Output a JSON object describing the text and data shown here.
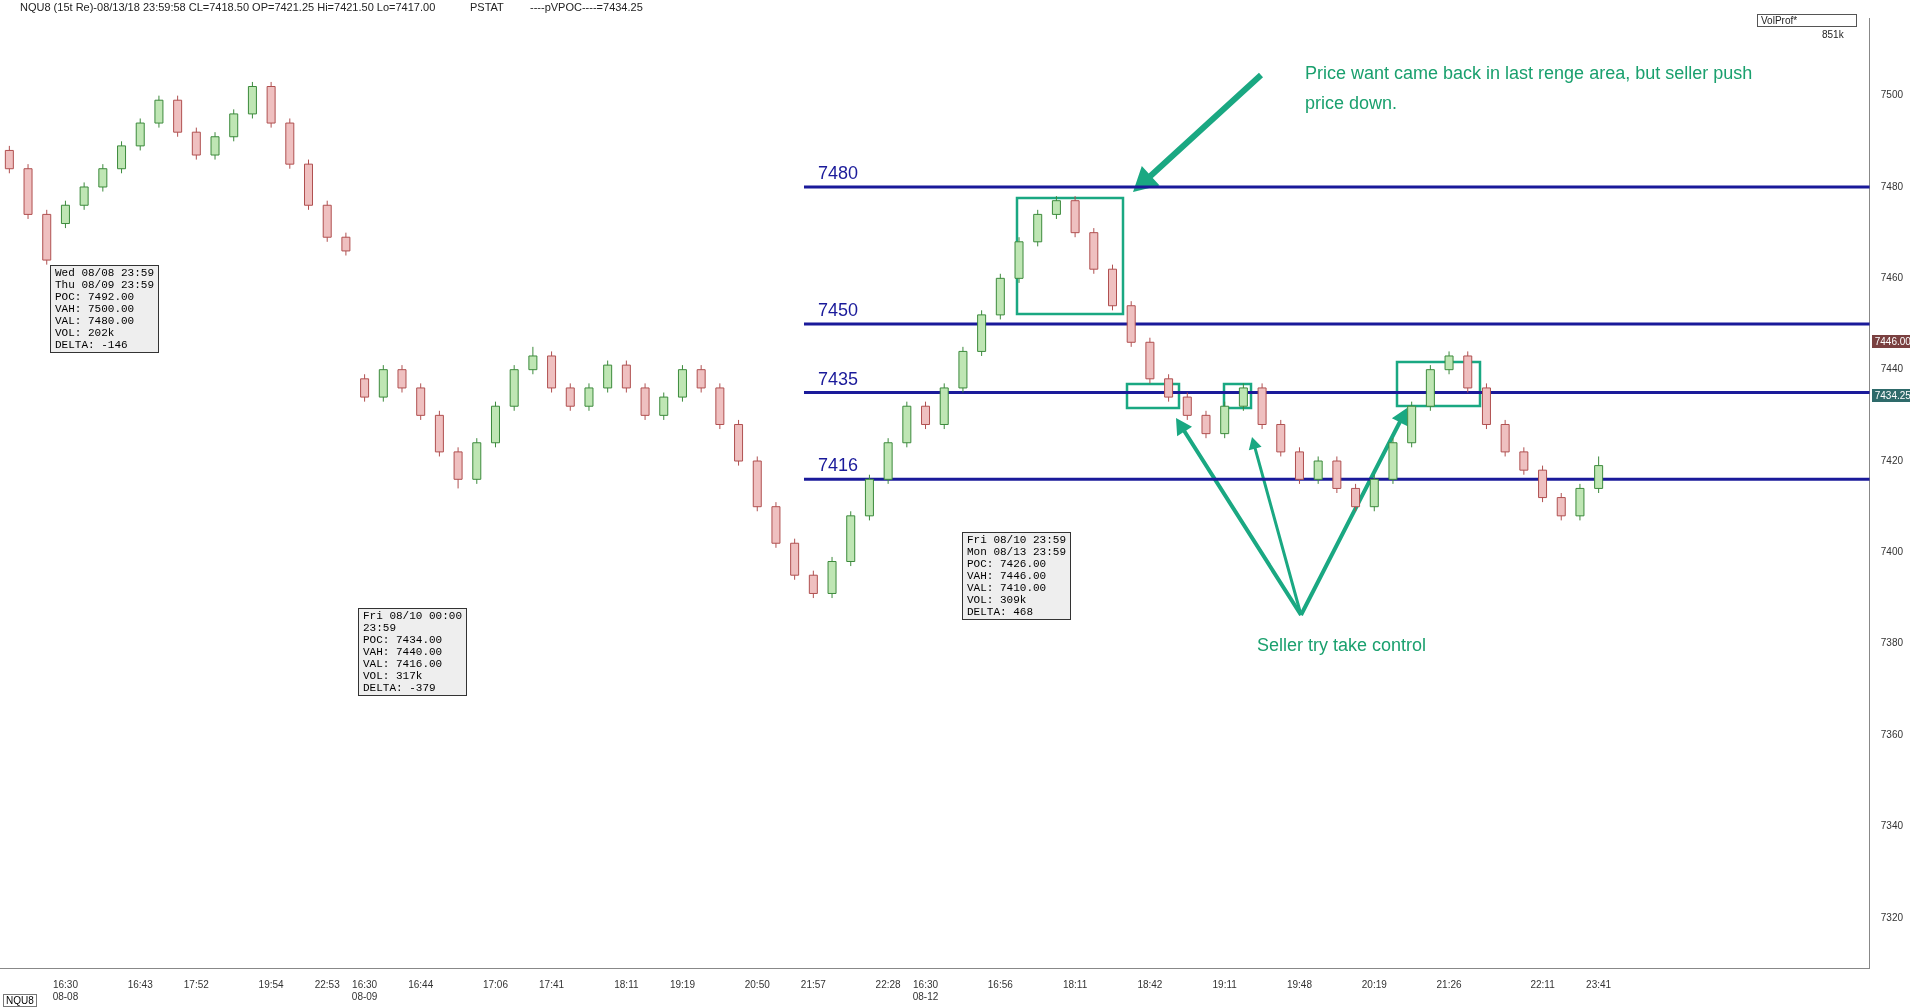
{
  "chart_data": {
    "type": "candlestick",
    "title": "NQU8 (15t Re)-08/13/18 23:59:58 CL=7418.50 OP=7421.25 Hi=7421.50 Lo=7417.00",
    "categories": [
      null,
      null,
      null,
      "16:30\n08-08",
      null,
      null,
      null,
      "16:43",
      null,
      null,
      "17:52",
      null,
      null,
      null,
      "19:54",
      null,
      null,
      "22:53",
      null,
      "16:30\n08-09",
      null,
      null,
      "16:44",
      null,
      null,
      null,
      "17:06",
      null,
      null,
      "17:41",
      null,
      null,
      null,
      "18:11",
      null,
      null,
      "19:19",
      null,
      null,
      null,
      "20:50",
      null,
      null,
      "21:57",
      null,
      null,
      null,
      "22:28",
      null,
      "16:30\n08-12",
      null,
      null,
      null,
      "16:56",
      null,
      null,
      null,
      "18:11",
      null,
      null,
      null,
      "18:42",
      null,
      null,
      null,
      "19:11",
      null,
      null,
      null,
      "19:48",
      null,
      null,
      null,
      "20:19",
      null,
      null,
      null,
      "21:26",
      null,
      null,
      null,
      null,
      "22:11",
      null,
      null,
      "23:41",
      null,
      null,
      null,
      null,
      null,
      null,
      null,
      null,
      null,
      null,
      null,
      null,
      null,
      null
    ],
    "ohlc": [
      [
        7488,
        7489,
        7483,
        7484
      ],
      [
        7484,
        7485,
        7473,
        7474
      ],
      [
        7474,
        7475,
        7463,
        7464
      ],
      [
        7472,
        7477,
        7471,
        7476
      ],
      [
        7476,
        7481,
        7475,
        7480
      ],
      [
        7480,
        7485,
        7479,
        7484
      ],
      [
        7484,
        7490,
        7483,
        7489
      ],
      [
        7489,
        7495,
        7488,
        7494
      ],
      [
        7494,
        7500,
        7493,
        7499
      ],
      [
        7499,
        7500,
        7491,
        7492
      ],
      [
        7492,
        7493,
        7486,
        7487
      ],
      [
        7487,
        7492,
        7486,
        7491
      ],
      [
        7491,
        7497,
        7490,
        7496
      ],
      [
        7496,
        7503,
        7495,
        7502
      ],
      [
        7502,
        7503,
        7493,
        7494
      ],
      [
        7494,
        7495,
        7484,
        7485
      ],
      [
        7485,
        7486,
        7475,
        7476
      ],
      [
        7476,
        7477,
        7468,
        7469
      ],
      [
        7469,
        7470,
        7465,
        7466
      ],
      [
        7438,
        7439,
        7433,
        7434
      ],
      [
        7434,
        7441,
        7433,
        7440
      ],
      [
        7440,
        7441,
        7435,
        7436
      ],
      [
        7436,
        7437,
        7429,
        7430
      ],
      [
        7430,
        7431,
        7421,
        7422
      ],
      [
        7422,
        7423,
        7414,
        7416
      ],
      [
        7416,
        7425,
        7415,
        7424
      ],
      [
        7424,
        7433,
        7423,
        7432
      ],
      [
        7432,
        7441,
        7431,
        7440
      ],
      [
        7440,
        7445,
        7439,
        7443
      ],
      [
        7443,
        7444,
        7435,
        7436
      ],
      [
        7436,
        7437,
        7431,
        7432
      ],
      [
        7432,
        7437,
        7431,
        7436
      ],
      [
        7436,
        7442,
        7435,
        7441
      ],
      [
        7441,
        7442,
        7435,
        7436
      ],
      [
        7436,
        7437,
        7429,
        7430
      ],
      [
        7430,
        7435,
        7429,
        7434
      ],
      [
        7434,
        7441,
        7433,
        7440
      ],
      [
        7440,
        7441,
        7435,
        7436
      ],
      [
        7436,
        7437,
        7427,
        7428
      ],
      [
        7428,
        7429,
        7419,
        7420
      ],
      [
        7420,
        7421,
        7409,
        7410
      ],
      [
        7410,
        7411,
        7401,
        7402
      ],
      [
        7402,
        7403,
        7394,
        7395
      ],
      [
        7395,
        7396,
        7390,
        7391
      ],
      [
        7391,
        7399,
        7390,
        7398
      ],
      [
        7398,
        7409,
        7397,
        7408
      ],
      [
        7408,
        7417,
        7407,
        7416
      ],
      [
        7416,
        7425,
        7415,
        7424
      ],
      [
        7424,
        7433,
        7423,
        7432
      ],
      [
        7432,
        7433,
        7427,
        7428
      ],
      [
        7428,
        7437,
        7427,
        7436
      ],
      [
        7436,
        7445,
        7435,
        7444
      ],
      [
        7444,
        7453,
        7443,
        7452
      ],
      [
        7452,
        7461,
        7451,
        7460
      ],
      [
        7460,
        7469,
        7459,
        7468
      ],
      [
        7468,
        7475,
        7467,
        7474
      ],
      [
        7474,
        7478,
        7473,
        7477
      ],
      [
        7477,
        7478,
        7469,
        7470
      ],
      [
        7470,
        7471,
        7461,
        7462
      ],
      [
        7462,
        7463,
        7453,
        7454
      ],
      [
        7454,
        7455,
        7445,
        7446
      ],
      [
        7446,
        7447,
        7437,
        7438
      ],
      [
        7438,
        7439,
        7433,
        7434
      ],
      [
        7434,
        7435,
        7429,
        7430
      ],
      [
        7430,
        7431,
        7425,
        7426
      ],
      [
        7426,
        7433,
        7425,
        7432
      ],
      [
        7432,
        7437,
        7431,
        7436
      ],
      [
        7436,
        7437,
        7427,
        7428
      ],
      [
        7428,
        7429,
        7421,
        7422
      ],
      [
        7422,
        7423,
        7415,
        7416
      ],
      [
        7416,
        7421,
        7415,
        7420
      ],
      [
        7420,
        7421,
        7413,
        7414
      ],
      [
        7414,
        7415,
        7409,
        7410
      ],
      [
        7410,
        7417,
        7409,
        7416
      ],
      [
        7416,
        7425,
        7415,
        7424
      ],
      [
        7424,
        7433,
        7423,
        7432
      ],
      [
        7432,
        7441,
        7431,
        7440
      ],
      [
        7440,
        7444,
        7439,
        7443
      ],
      [
        7443,
        7444,
        7435,
        7436
      ],
      [
        7436,
        7437,
        7427,
        7428
      ],
      [
        7428,
        7429,
        7421,
        7422
      ],
      [
        7422,
        7423,
        7417,
        7418
      ],
      [
        7418,
        7419,
        7411,
        7412
      ],
      [
        7412,
        7413,
        7407,
        7408
      ],
      [
        7408,
        7415,
        7407,
        7414
      ],
      [
        7414,
        7421,
        7413,
        7419
      ],
      null,
      null,
      null,
      null,
      null,
      null,
      null,
      null,
      null,
      null,
      null,
      null,
      null,
      null
    ],
    "ylim": [
      7309,
      7517
    ],
    "yticks": [
      7320,
      7340,
      7360,
      7380,
      7400,
      7420,
      7440,
      7460,
      7480,
      7500
    ],
    "grid": false,
    "legend": false,
    "ref_lines": [
      {
        "axis": "y",
        "value": 7480,
        "label": "7480",
        "color": "#1a1a9a"
      },
      {
        "axis": "y",
        "value": 7450,
        "label": "7450",
        "color": "#1a1a9a"
      },
      {
        "axis": "y",
        "value": 7435,
        "label": "7435",
        "color": "#1a1a9a"
      },
      {
        "axis": "y",
        "value": 7416,
        "label": "7416",
        "color": "#1a1a9a"
      }
    ],
    "annotations": [
      "PSTAT",
      "----pVPOC----=7434.25",
      "VolProf*",
      "851k",
      "Wed 08/08 23:59\nThu 08/09 23:59\nPOC: 7492.00\nVAH: 7500.00\nVAL: 7480.00\nVOL: 202k\nDELTA: -146",
      "Fri 08/10 00:00\n23:59\nPOC: 7434.00\nVAH: 7440.00\nVAL: 7416.00\nVOL: 317k\nDELTA: -379",
      "Fri 08/10 23:59\nMon 08/13 23:59\nPOC: 7426.00\nVAH: 7446.00\nVAL: 7410.00\nVOL: 309k\nDELTA: 468",
      "Price want came back in last renge area, but seller push price down.",
      "Seller try take control",
      "NQU8",
      {
        "text": "7446.00",
        "y": 7446
      },
      {
        "text": "7434.25",
        "y": 7434.25
      }
    ]
  }
}
